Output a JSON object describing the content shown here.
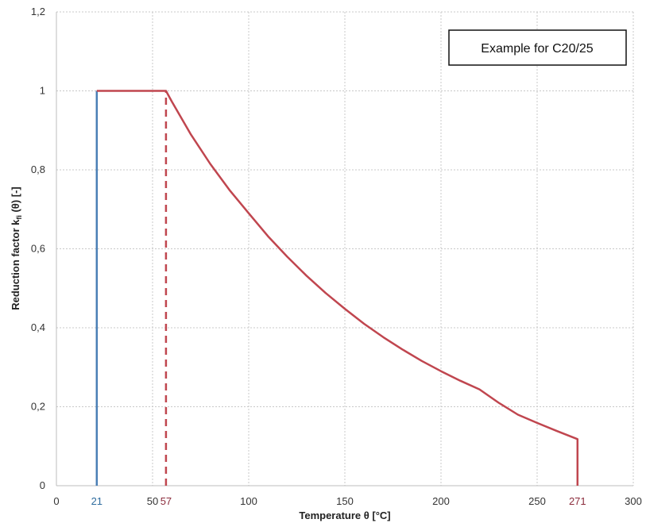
{
  "chart_data": {
    "type": "line",
    "annotation": "Example for C20/25",
    "xlabel_main": "Temperature θ [°C]",
    "ylabel": {
      "prefix": "Reduction factor k",
      "subscript": "fi",
      "suffix": " (θ) [-]"
    },
    "xlim": [
      0,
      300
    ],
    "ylim": [
      0,
      1.2
    ],
    "grid": true,
    "x_ticks": [
      {
        "value": 0,
        "label": "0",
        "color": "#333333"
      },
      {
        "value": 21,
        "label": "21",
        "color": "#2e6c9e"
      },
      {
        "value": 50,
        "label": "50",
        "color": "#333333"
      },
      {
        "value": 57,
        "label": "57",
        "color": "#8b2c3c"
      },
      {
        "value": 100,
        "label": "100",
        "color": "#333333"
      },
      {
        "value": 150,
        "label": "150",
        "color": "#333333"
      },
      {
        "value": 200,
        "label": "200",
        "color": "#333333"
      },
      {
        "value": 250,
        "label": "250",
        "color": "#333333"
      },
      {
        "value": 271,
        "label": "271",
        "color": "#8b2c3c"
      },
      {
        "value": 300,
        "label": "300",
        "color": "#333333"
      }
    ],
    "y_ticks": [
      {
        "value": 0,
        "label": "0"
      },
      {
        "value": 0.2,
        "label": "0,2"
      },
      {
        "value": 0.4,
        "label": "0,4"
      },
      {
        "value": 0.6,
        "label": "0,6"
      },
      {
        "value": 0.8,
        "label": "0,8"
      },
      {
        "value": 1.0,
        "label": "1"
      },
      {
        "value": 1.2,
        "label": "1,2"
      }
    ],
    "series": [
      {
        "color": "#4a7fb5",
        "style": "solid",
        "x": [
          21,
          21
        ],
        "y": [
          0,
          1.0
        ]
      },
      {
        "color": "#c0464f",
        "style": "dashed",
        "x": [
          57,
          57
        ],
        "y": [
          0,
          1.0
        ]
      },
      {
        "color": "#c0464f",
        "style": "solid",
        "x": [
          21,
          57,
          60,
          70,
          80,
          90,
          100,
          110,
          120,
          130,
          140,
          150,
          160,
          170,
          180,
          190,
          200,
          210,
          220,
          230,
          240,
          250,
          260,
          271,
          271
        ],
        "y": [
          1.0,
          1.0,
          0.973,
          0.889,
          0.815,
          0.749,
          0.69,
          0.632,
          0.58,
          0.532,
          0.488,
          0.448,
          0.41,
          0.376,
          0.345,
          0.316,
          0.29,
          0.266,
          0.244,
          0.21,
          0.18,
          0.159,
          0.139,
          0.118,
          0
        ]
      }
    ]
  }
}
